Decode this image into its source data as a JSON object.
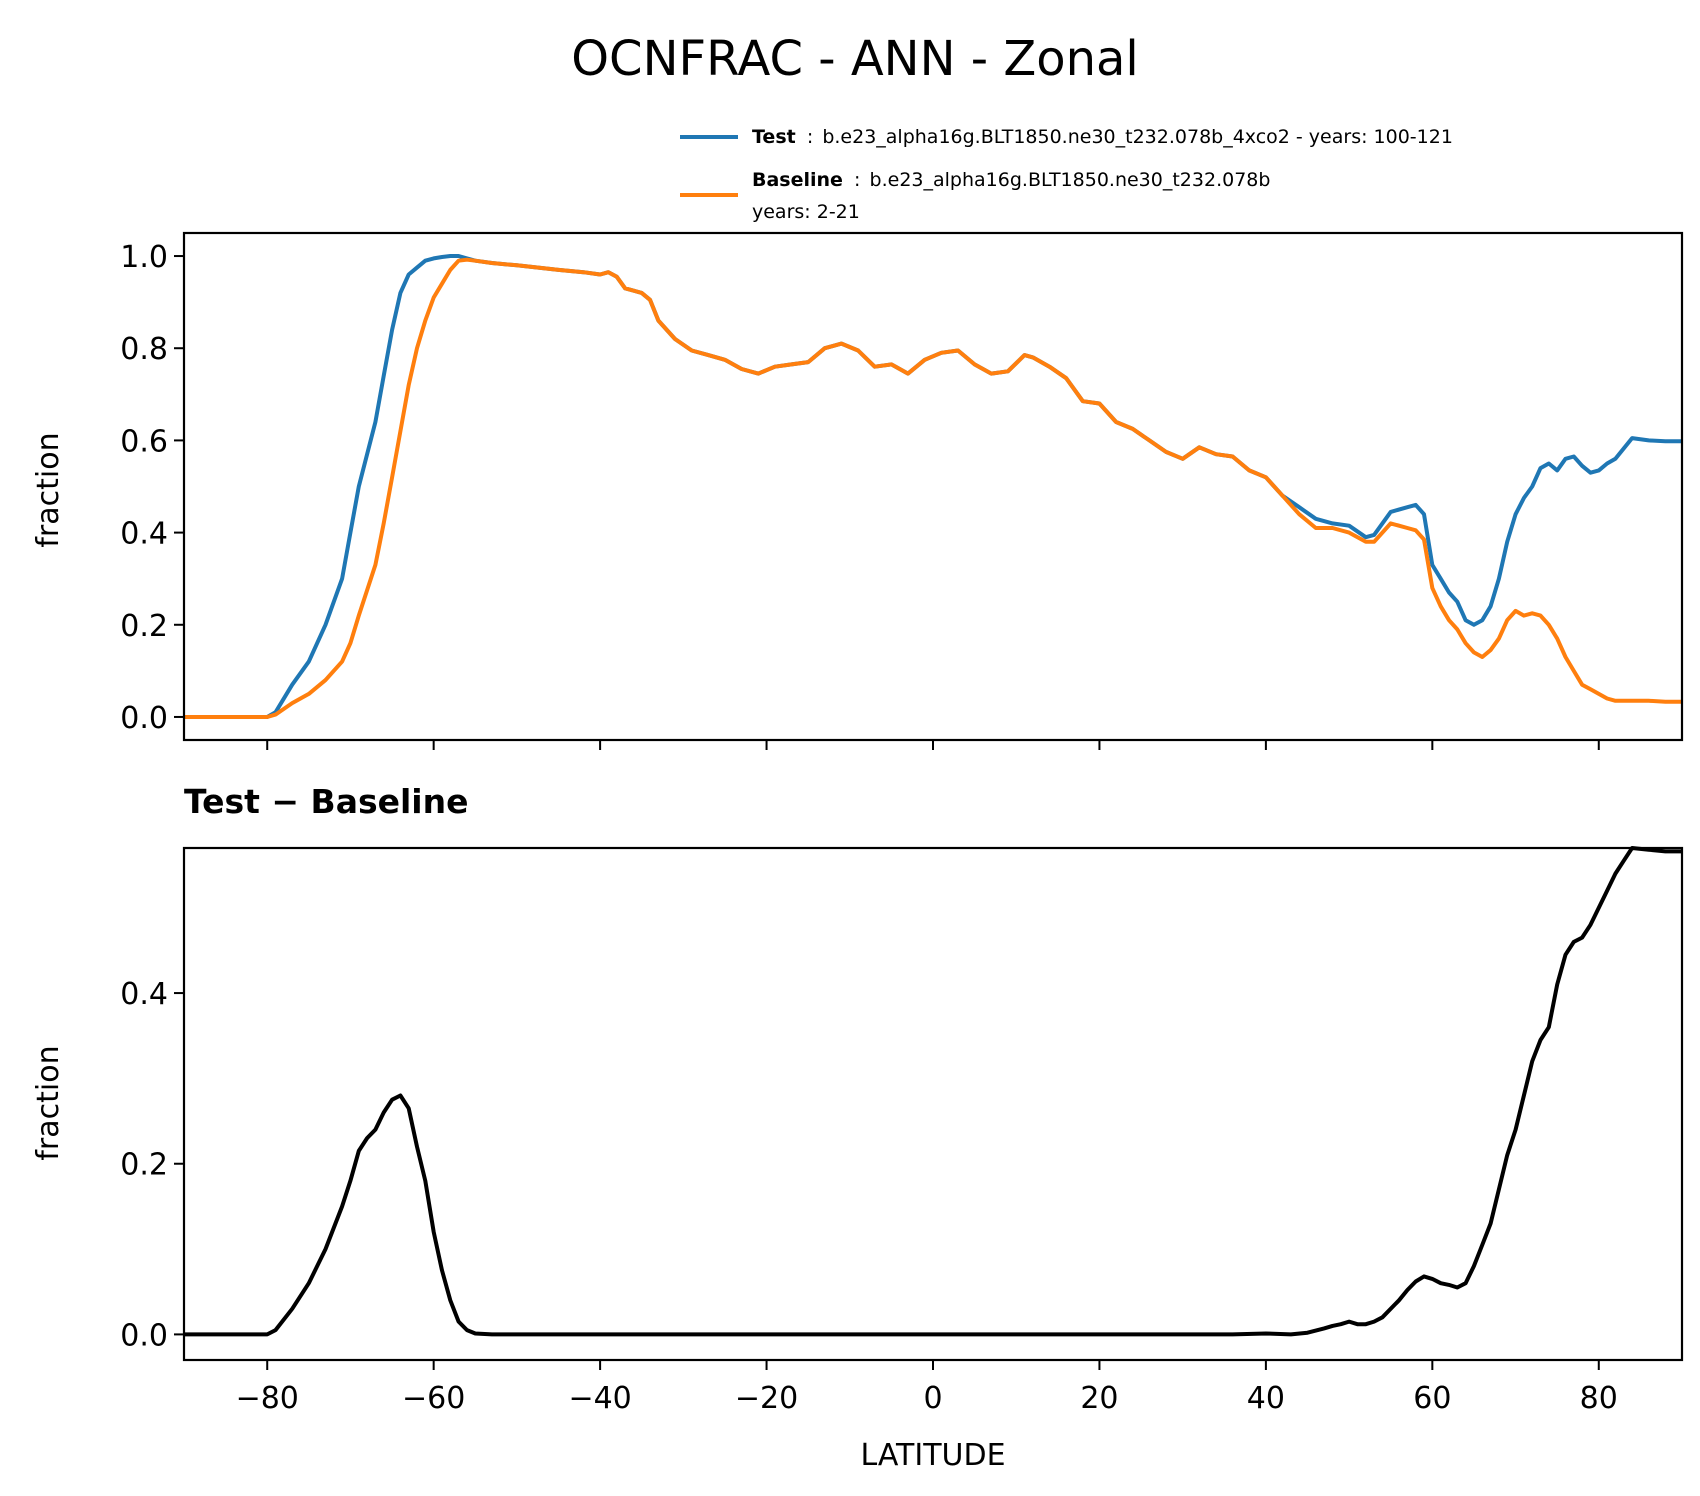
{
  "title": "OCNFRAC - ANN - Zonal",
  "legend": {
    "placement": "top-right",
    "test_name": "Test",
    "test_sep": ":",
    "test_desc": "b.e23_alpha16g.BLT1850.ne30_t232.078b_4xco2 - years: 100-121",
    "baseline_name": "Baseline",
    "baseline_sep": ":",
    "baseline_desc": "b.e23_alpha16g.BLT1850.ne30_t232.078b",
    "baseline_years": "years: 2-21"
  },
  "colors": {
    "test": "#1f77b4",
    "baseline": "#ff7f0e",
    "diff": "#000000"
  },
  "chart_data": [
    {
      "type": "line",
      "title": "",
      "xlabel": "",
      "ylabel": "fraction",
      "xlim": [
        -90,
        90
      ],
      "ylim": [
        -0.05,
        1.05
      ],
      "yticks": [
        "0.0",
        "0.2",
        "0.4",
        "0.6",
        "0.8",
        "1.0"
      ],
      "grid": false,
      "series": [
        {
          "name": "Test",
          "x": [
            -90,
            -80,
            -79,
            -77,
            -75,
            -73,
            -71,
            -70,
            -69,
            -67,
            -66,
            -65,
            -64,
            -63,
            -62,
            -61,
            -60,
            -59,
            -58,
            -57,
            -56,
            -55,
            -53,
            -50,
            -45,
            -42,
            -40,
            -39,
            -38,
            -37,
            -35,
            -34,
            -33,
            -31,
            -29,
            -27,
            -25,
            -23,
            -21,
            -19,
            -17,
            -15,
            -13,
            -12,
            -11,
            -9,
            -7,
            -5,
            -3,
            -1,
            1,
            3,
            5,
            7,
            9,
            11,
            12,
            14,
            16,
            18,
            20,
            22,
            24,
            26,
            28,
            30,
            32,
            34,
            36,
            38,
            40,
            42,
            44,
            46,
            48,
            50,
            52,
            53,
            55,
            57,
            58,
            59,
            60,
            61,
            62,
            63,
            64,
            65,
            66,
            67,
            68,
            69,
            70,
            71,
            72,
            73,
            74,
            75,
            76,
            77,
            78,
            79,
            80,
            81,
            82,
            84,
            86,
            88,
            90
          ],
          "values": [
            0.0,
            0.0,
            0.01,
            0.07,
            0.12,
            0.2,
            0.3,
            0.4,
            0.5,
            0.64,
            0.74,
            0.84,
            0.92,
            0.96,
            0.975,
            0.99,
            0.995,
            0.998,
            1.0,
            1.0,
            0.995,
            0.99,
            0.985,
            0.98,
            0.97,
            0.965,
            0.96,
            0.965,
            0.955,
            0.93,
            0.92,
            0.905,
            0.86,
            0.82,
            0.795,
            0.785,
            0.775,
            0.755,
            0.745,
            0.76,
            0.765,
            0.77,
            0.8,
            0.805,
            0.81,
            0.795,
            0.76,
            0.765,
            0.745,
            0.775,
            0.79,
            0.795,
            0.765,
            0.745,
            0.75,
            0.785,
            0.78,
            0.76,
            0.735,
            0.685,
            0.68,
            0.64,
            0.625,
            0.6,
            0.575,
            0.56,
            0.585,
            0.57,
            0.565,
            0.535,
            0.52,
            0.48,
            0.455,
            0.43,
            0.42,
            0.415,
            0.39,
            0.395,
            0.445,
            0.455,
            0.46,
            0.44,
            0.33,
            0.3,
            0.27,
            0.25,
            0.21,
            0.2,
            0.21,
            0.24,
            0.3,
            0.38,
            0.44,
            0.475,
            0.5,
            0.54,
            0.55,
            0.535,
            0.56,
            0.565,
            0.545,
            0.53,
            0.535,
            0.55,
            0.56,
            0.605,
            0.6,
            0.598,
            0.598
          ]
        },
        {
          "name": "Baseline",
          "x": [
            -90,
            -80,
            -79,
            -77,
            -75,
            -73,
            -71,
            -70,
            -69,
            -67,
            -66,
            -65,
            -64,
            -63,
            -62,
            -61,
            -60,
            -59,
            -58,
            -57,
            -56,
            -55,
            -53,
            -50,
            -45,
            -42,
            -40,
            -39,
            -38,
            -37,
            -35,
            -34,
            -33,
            -31,
            -29,
            -27,
            -25,
            -23,
            -21,
            -19,
            -17,
            -15,
            -13,
            -12,
            -11,
            -9,
            -7,
            -5,
            -3,
            -1,
            1,
            3,
            5,
            7,
            9,
            11,
            12,
            14,
            16,
            18,
            20,
            22,
            24,
            26,
            28,
            30,
            32,
            34,
            36,
            38,
            40,
            42,
            44,
            46,
            48,
            50,
            52,
            53,
            55,
            57,
            58,
            59,
            60,
            61,
            62,
            63,
            64,
            65,
            66,
            67,
            68,
            69,
            70,
            71,
            72,
            73,
            74,
            75,
            76,
            77,
            78,
            79,
            80,
            81,
            82,
            84,
            86,
            88,
            90
          ],
          "values": [
            0.0,
            0.0,
            0.005,
            0.03,
            0.05,
            0.08,
            0.12,
            0.16,
            0.22,
            0.33,
            0.42,
            0.52,
            0.62,
            0.72,
            0.8,
            0.86,
            0.91,
            0.94,
            0.97,
            0.99,
            0.992,
            0.99,
            0.985,
            0.98,
            0.97,
            0.965,
            0.96,
            0.965,
            0.955,
            0.93,
            0.92,
            0.905,
            0.86,
            0.82,
            0.795,
            0.785,
            0.775,
            0.755,
            0.745,
            0.76,
            0.765,
            0.77,
            0.8,
            0.805,
            0.81,
            0.795,
            0.76,
            0.765,
            0.745,
            0.775,
            0.79,
            0.795,
            0.765,
            0.745,
            0.75,
            0.785,
            0.78,
            0.76,
            0.735,
            0.685,
            0.68,
            0.64,
            0.625,
            0.6,
            0.575,
            0.56,
            0.585,
            0.57,
            0.565,
            0.535,
            0.52,
            0.48,
            0.44,
            0.41,
            0.41,
            0.4,
            0.38,
            0.38,
            0.42,
            0.41,
            0.405,
            0.385,
            0.28,
            0.24,
            0.21,
            0.19,
            0.16,
            0.14,
            0.13,
            0.145,
            0.17,
            0.21,
            0.23,
            0.22,
            0.225,
            0.22,
            0.2,
            0.17,
            0.13,
            0.1,
            0.07,
            0.06,
            0.05,
            0.04,
            0.035,
            0.035,
            0.035,
            0.033,
            0.033
          ]
        }
      ]
    },
    {
      "type": "line",
      "title": "Test − Baseline",
      "xlabel": "LATITUDE",
      "ylabel": "fraction",
      "xlim": [
        -90,
        90
      ],
      "ylim": [
        -0.03,
        0.57
      ],
      "yticks": [
        "0.0",
        "0.2",
        "0.4"
      ],
      "xticks": [
        "−80",
        "−60",
        "−40",
        "−20",
        "0",
        "20",
        "40",
        "60",
        "80"
      ],
      "grid": false,
      "series": [
        {
          "x": [
            -90,
            -80,
            -79,
            -77,
            -75,
            -73,
            -71,
            -70,
            -69,
            -68,
            -67,
            -66,
            -65,
            -64,
            -63,
            -62,
            -61,
            -60,
            -59,
            -58,
            -57,
            -56,
            -55,
            -53,
            -50,
            -40,
            -30,
            -20,
            -10,
            0,
            10,
            20,
            30,
            36,
            40,
            43,
            45,
            47,
            48,
            49,
            50,
            51,
            52,
            53,
            54,
            56,
            57,
            58,
            59,
            60,
            61,
            62,
            63,
            64,
            65,
            66,
            67,
            68,
            69,
            70,
            71,
            72,
            73,
            74,
            75,
            76,
            77,
            78,
            79,
            80,
            81,
            82,
            83,
            84,
            86,
            88,
            90
          ],
          "values": [
            0.0,
            0.0,
            0.005,
            0.03,
            0.06,
            0.1,
            0.15,
            0.18,
            0.215,
            0.23,
            0.24,
            0.26,
            0.275,
            0.28,
            0.265,
            0.22,
            0.18,
            0.12,
            0.075,
            0.04,
            0.015,
            0.005,
            0.001,
            0.0,
            0.0,
            0.0,
            0.0,
            0.0,
            0.0,
            0.0,
            0.0,
            0.0,
            0.0,
            0.0,
            0.001,
            0.0,
            0.002,
            0.007,
            0.01,
            0.012,
            0.015,
            0.012,
            0.012,
            0.015,
            0.02,
            0.04,
            0.052,
            0.062,
            0.068,
            0.065,
            0.06,
            0.058,
            0.055,
            0.06,
            0.08,
            0.105,
            0.13,
            0.17,
            0.21,
            0.24,
            0.28,
            0.32,
            0.345,
            0.36,
            0.41,
            0.445,
            0.46,
            0.465,
            0.48,
            0.5,
            0.52,
            0.54,
            0.555,
            0.57,
            0.568,
            0.566,
            0.566
          ]
        }
      ]
    }
  ]
}
